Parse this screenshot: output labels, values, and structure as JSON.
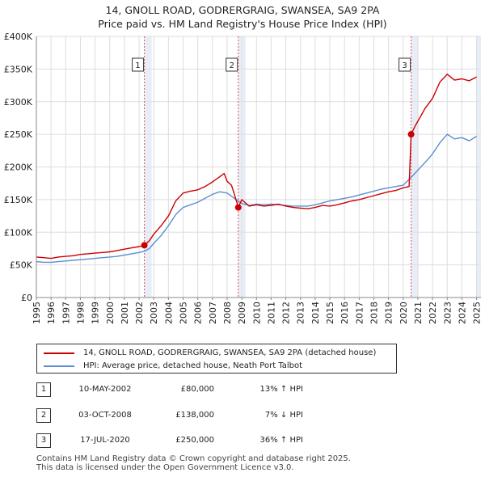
{
  "chart_data": {
    "type": "line",
    "title": "14, GNOLL ROAD, GODRERGRAIG, SWANSEA, SA9 2PA",
    "subtitle": "Price paid vs. HM Land Registry's House Price Index (HPI)",
    "xlim": [
      1995,
      2025.3
    ],
    "ylim": [
      0,
      400000
    ],
    "x_ticks": [
      "1995",
      "1996",
      "1997",
      "1998",
      "1999",
      "2000",
      "2001",
      "2002",
      "2003",
      "2004",
      "2005",
      "2006",
      "2007",
      "2008",
      "2009",
      "2010",
      "2011",
      "2012",
      "2013",
      "2014",
      "2015",
      "2016",
      "2017",
      "2018",
      "2019",
      "2020",
      "2021",
      "2022",
      "2023",
      "2024",
      "2025"
    ],
    "y_ticks": [
      {
        "value": 0,
        "label": "£0"
      },
      {
        "value": 50000,
        "label": "£50K"
      },
      {
        "value": 100000,
        "label": "£100K"
      },
      {
        "value": 150000,
        "label": "£150K"
      },
      {
        "value": 200000,
        "label": "£200K"
      },
      {
        "value": 250000,
        "label": "£250K"
      },
      {
        "value": 300000,
        "label": "£300K"
      },
      {
        "value": 350000,
        "label": "£350K"
      },
      {
        "value": 400000,
        "label": "£400K"
      }
    ],
    "grid": true,
    "series": [
      {
        "name": "14, GNOLL ROAD, GODRERGRAIG, SWANSEA, SA9 2PA (detached house)",
        "color": "#cc0000",
        "x": [
          1995.0,
          1995.5,
          1996.0,
          1996.5,
          1997.0,
          1997.5,
          1998.0,
          1998.5,
          1999.0,
          1999.5,
          2000.0,
          2000.5,
          2001.0,
          2001.5,
          2002.0,
          2002.36,
          2002.7,
          2003.0,
          2003.5,
          2004.0,
          2004.5,
          2005.0,
          2005.5,
          2006.0,
          2006.5,
          2007.0,
          2007.5,
          2007.8,
          2008.0,
          2008.3,
          2008.5,
          2008.76,
          2009.0,
          2009.5,
          2010.0,
          2010.5,
          2011.0,
          2011.5,
          2012.0,
          2012.5,
          2013.0,
          2013.5,
          2014.0,
          2014.5,
          2015.0,
          2015.5,
          2016.0,
          2016.5,
          2017.0,
          2017.5,
          2018.0,
          2018.5,
          2019.0,
          2019.5,
          2020.0,
          2020.4,
          2020.54,
          2020.8,
          2021.0,
          2021.5,
          2022.0,
          2022.5,
          2023.0,
          2023.5,
          2024.0,
          2024.5,
          2025.0
        ],
        "y": [
          62000,
          61000,
          60000,
          62000,
          63000,
          64000,
          66000,
          67000,
          68000,
          69000,
          70000,
          72000,
          74000,
          76000,
          78000,
          80000,
          87000,
          97000,
          110000,
          125000,
          148000,
          160000,
          163000,
          165000,
          170000,
          177000,
          185000,
          190000,
          178000,
          172000,
          158000,
          138000,
          150000,
          140000,
          142000,
          140000,
          141000,
          143000,
          140000,
          138000,
          137000,
          136000,
          138000,
          141000,
          140000,
          142000,
          145000,
          148000,
          150000,
          153000,
          156000,
          159000,
          162000,
          164000,
          168000,
          170000,
          250000,
          262000,
          270000,
          290000,
          305000,
          330000,
          342000,
          333000,
          335000,
          332000,
          338000
        ]
      },
      {
        "name": "HPI: Average price, detached house, Neath Port Talbot",
        "color": "#5b8fd1",
        "x": [
          1995.0,
          1995.5,
          1996.0,
          1996.5,
          1997.0,
          1997.5,
          1998.0,
          1998.5,
          1999.0,
          1999.5,
          2000.0,
          2000.5,
          2001.0,
          2001.5,
          2002.0,
          2002.36,
          2002.7,
          2003.0,
          2003.5,
          2004.0,
          2004.5,
          2005.0,
          2005.5,
          2006.0,
          2006.5,
          2007.0,
          2007.5,
          2008.0,
          2008.5,
          2008.76,
          2009.0,
          2009.5,
          2010.0,
          2010.5,
          2011.0,
          2011.5,
          2012.0,
          2012.5,
          2013.0,
          2013.5,
          2014.0,
          2014.5,
          2015.0,
          2015.5,
          2016.0,
          2016.5,
          2017.0,
          2017.5,
          2018.0,
          2018.5,
          2019.0,
          2019.5,
          2020.0,
          2020.54,
          2021.0,
          2021.5,
          2022.0,
          2022.5,
          2023.0,
          2023.5,
          2024.0,
          2024.5,
          2025.0
        ],
        "y": [
          55000,
          54000,
          54000,
          55000,
          56000,
          57000,
          58000,
          59000,
          60000,
          61000,
          62000,
          63000,
          65000,
          67000,
          69000,
          71000,
          75000,
          83000,
          95000,
          110000,
          127000,
          138000,
          142000,
          146000,
          152000,
          158000,
          162000,
          160000,
          152000,
          148000,
          144000,
          141000,
          143000,
          142000,
          143000,
          142000,
          141000,
          140000,
          140000,
          140000,
          142000,
          145000,
          148000,
          150000,
          152000,
          154000,
          157000,
          160000,
          163000,
          166000,
          168000,
          170000,
          172000,
          184000,
          195000,
          207000,
          220000,
          237000,
          250000,
          243000,
          245000,
          240000,
          247000
        ]
      }
    ],
    "transactions": [
      {
        "id": "1",
        "x": 2002.36,
        "y": 80000
      },
      {
        "id": "2",
        "x": 2008.76,
        "y": 138000
      },
      {
        "id": "3",
        "x": 2020.54,
        "y": 250000
      }
    ]
  },
  "legend": {
    "items": [
      {
        "label": "14, GNOLL ROAD, GODRERGRAIG, SWANSEA, SA9 2PA (detached house)",
        "color": "#cc0000"
      },
      {
        "label": "HPI: Average price, detached house, Neath Port Talbot",
        "color": "#5b8fd1"
      }
    ]
  },
  "transactions_table": [
    {
      "id": "1",
      "date": "10-MAY-2002",
      "price": "£80,000",
      "hpi": "13% ↑ HPI"
    },
    {
      "id": "2",
      "date": "03-OCT-2008",
      "price": "£138,000",
      "hpi": "7% ↓ HPI"
    },
    {
      "id": "3",
      "date": "17-JUL-2020",
      "price": "£250,000",
      "hpi": "36% ↑ HPI"
    }
  ],
  "footer": {
    "line1": "Contains HM Land Registry data © Crown copyright and database right 2025.",
    "line2": "This data is licensed under the Open Government Licence v3.0."
  }
}
